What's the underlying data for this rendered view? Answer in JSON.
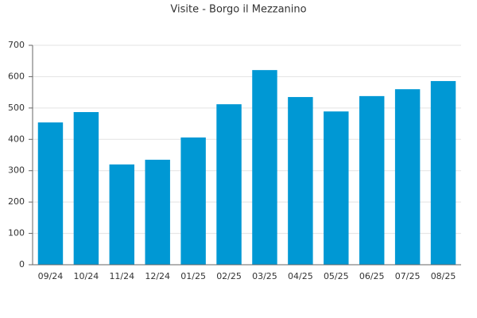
{
  "chart_data": {
    "type": "bar",
    "title": "Visite - Borgo il Mezzanino",
    "categories": [
      "09/24",
      "10/24",
      "11/24",
      "12/24",
      "01/25",
      "02/25",
      "03/25",
      "04/25",
      "05/25",
      "06/25",
      "07/25",
      "08/25"
    ],
    "values": [
      454,
      487,
      320,
      335,
      406,
      512,
      621,
      535,
      489,
      538,
      560,
      586
    ],
    "color": "#0098d4",
    "ylim": [
      0,
      700
    ],
    "yticks": [
      0,
      100,
      200,
      300,
      400,
      500,
      600,
      700
    ],
    "grid": true
  }
}
